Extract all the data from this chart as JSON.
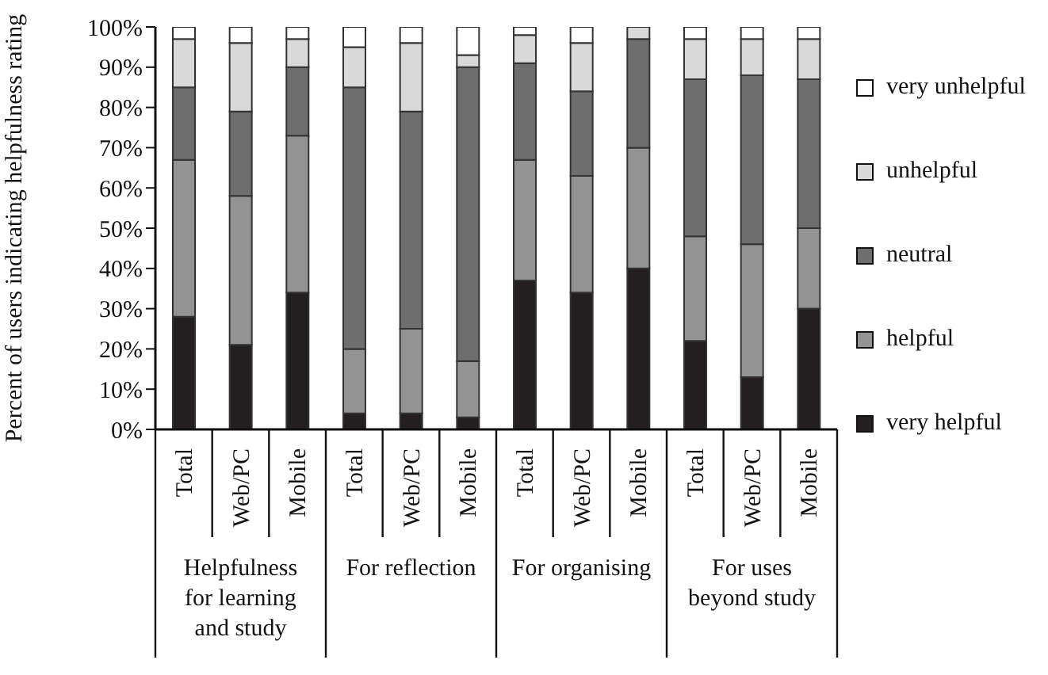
{
  "chart_data": {
    "type": "bar",
    "stacked": true,
    "ylabel": "Percent of users indicating helpfulness rating",
    "categories": [
      "Total",
      "Web/PC",
      "Mobile",
      "Total",
      "Web/PC",
      "Mobile",
      "Total",
      "Web/PC",
      "Mobile",
      "Total",
      "Web/PC",
      "Mobile"
    ],
    "annotations": [
      "Helpfulness for learning and study",
      "For reflection",
      "For organising",
      "For uses beyond study"
    ],
    "series": [
      {
        "name": "very helpful",
        "color": "#231f20",
        "values": [
          28,
          21,
          34,
          4,
          4,
          3,
          37,
          34,
          40,
          22,
          13,
          30
        ]
      },
      {
        "name": "helpful",
        "color": "#939393",
        "values": [
          39,
          37,
          39,
          16,
          21,
          14,
          30,
          29,
          30,
          26,
          33,
          20
        ]
      },
      {
        "name": "neutral",
        "color": "#6e6e6e",
        "values": [
          18,
          21,
          17,
          65,
          54,
          73,
          24,
          21,
          27,
          39,
          42,
          37
        ]
      },
      {
        "name": "unhelpful",
        "color": "#d9d9d9",
        "values": [
          12,
          17,
          7,
          10,
          17,
          3,
          7,
          12,
          3,
          10,
          9,
          10
        ]
      },
      {
        "name": "very unhelpful",
        "color": "#ffffff",
        "values": [
          3,
          4,
          3,
          5,
          4,
          7,
          2,
          4,
          0,
          3,
          3,
          3
        ]
      }
    ],
    "ylim": [
      0,
      100
    ],
    "yticks": [
      {
        "value": 0,
        "label": "0%"
      },
      {
        "value": 10,
        "label": "10%"
      },
      {
        "value": 20,
        "label": "20%"
      },
      {
        "value": 30,
        "label": "30%"
      },
      {
        "value": 40,
        "label": "40%"
      },
      {
        "value": 50,
        "label": "50%"
      },
      {
        "value": 60,
        "label": "60%"
      },
      {
        "value": 70,
        "label": "70%"
      },
      {
        "value": 80,
        "label": "80%"
      },
      {
        "value": 90,
        "label": "90%"
      },
      {
        "value": 100,
        "label": "100%"
      }
    ],
    "grid": false,
    "legend": "right"
  }
}
